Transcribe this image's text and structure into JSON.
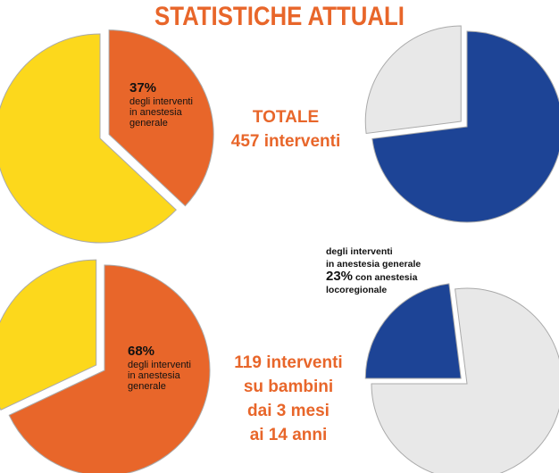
{
  "title": "STATISTICHE ATTUALI",
  "totale": {
    "line1": "TOTALE",
    "line2": "457 interventi"
  },
  "bambini": {
    "line1": "119 interventi",
    "line2": "su bambini",
    "line3": "dai 3 mesi",
    "line4": "ai 14 anni"
  },
  "label_top_left": {
    "pct": "37%",
    "l1": "degli interventi",
    "l2": "in anestesia",
    "l3": "generale"
  },
  "label_bottom_left": {
    "pct": "68%",
    "l1": "degli interventi",
    "l2": "in anestesia",
    "l3": "generale"
  },
  "label_bottom_right": {
    "l1": "degli interventi",
    "l2": "in anestesia generale",
    "pct": "23%",
    "l3": "con anestesia",
    "l4": "locoregionale"
  },
  "colors": {
    "orange": "#e8662a",
    "yellow": "#fcd81c",
    "blue": "#1d4496",
    "lightgray": "#e8e8e8",
    "border": "#aaaaaa"
  },
  "chart_data": [
    {
      "type": "pie",
      "slices": [
        {
          "value": 37,
          "color": "#e8662a",
          "exploded": true
        },
        {
          "value": 63,
          "color": "#fcd81c"
        }
      ]
    },
    {
      "type": "pie",
      "slices": [
        {
          "value": 73,
          "color": "#1d4496"
        },
        {
          "value": 27,
          "color": "#e8e8e8",
          "exploded": true
        }
      ]
    },
    {
      "type": "pie",
      "slices": [
        {
          "value": 68,
          "color": "#e8662a"
        },
        {
          "value": 32,
          "color": "#fcd81c",
          "exploded": true
        }
      ]
    },
    {
      "type": "pie",
      "slices": [
        {
          "value": 23,
          "color": "#1d4496",
          "exploded": true
        },
        {
          "value": 77,
          "color": "#e8e8e8"
        }
      ]
    }
  ]
}
